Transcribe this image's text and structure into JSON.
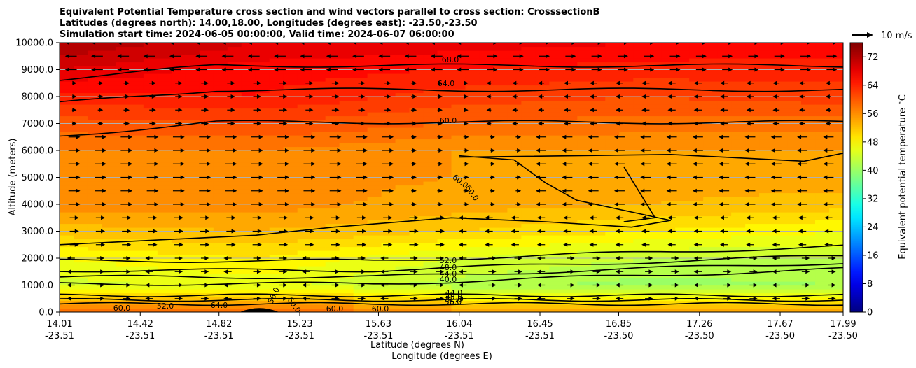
{
  "chart_data": {
    "type": "heatmap",
    "title_lines": [
      "Equivalent Potential Temperature cross section and wind vectors parallel to cross section: CrosssectionB",
      "Latitudes (degrees north): 14.00,18.00, Longitudes (degrees east): -23.50,-23.50",
      "Simulation start time: 2024-06-05 00:00:00, Valid time: 2024-06-07 06:00:00"
    ],
    "xlabel_1": "Latitude (degrees N)",
    "xlabel_2": "Longitude (degrees E)",
    "ylabel": "Altitude (meters)",
    "x_ticks_lat": [
      "14.01",
      "14.42",
      "14.82",
      "15.23",
      "15.63",
      "16.04",
      "16.45",
      "16.85",
      "17.26",
      "17.67",
      "17.99"
    ],
    "x_ticks_lon": [
      "-23.51",
      "-23.51",
      "-23.51",
      "-23.51",
      "-23.51",
      "-23.51",
      "-23.51",
      "-23.50",
      "-23.50",
      "-23.50",
      "-23.50"
    ],
    "y_ticks": [
      "0.0",
      "1000.0",
      "2000.0",
      "3000.0",
      "4000.0",
      "5000.0",
      "6000.0",
      "7000.0",
      "8000.0",
      "9000.0",
      "10000.0"
    ],
    "xlim": [
      14.01,
      17.99
    ],
    "ylim": [
      0,
      10000
    ],
    "colorbar": {
      "label": "Equivalent potential temperature $^\\circ$C",
      "ticks": [
        "0",
        "8",
        "16",
        "24",
        "32",
        "40",
        "48",
        "56",
        "64",
        "72"
      ],
      "range": [
        0,
        76
      ]
    },
    "quiver_key_label": "10 m/s",
    "contour_labels": [
      "68.0",
      "64.0",
      "60.0",
      "60.0",
      "60.0",
      "52.0",
      "48.0",
      "44.0",
      "40.0",
      "44.0",
      "48.0",
      "52.0",
      "56.0",
      "60.0",
      "60.0",
      "60.0",
      "56.0",
      "52.0",
      "64.0",
      "60.0"
    ],
    "contour_levels": [
      40,
      44,
      48,
      52,
      56,
      60,
      64,
      68
    ],
    "field_bands": [
      {
        "lat_frac": 0.0,
        "values_by_altitude": [
          58,
          44,
          47,
          52,
          56,
          57,
          57,
          60,
          64,
          69,
          73
        ]
      },
      {
        "lat_frac": 0.25,
        "values_by_altitude": [
          60,
          46,
          49,
          53,
          56,
          56,
          57,
          61,
          65,
          66,
          69
        ]
      },
      {
        "lat_frac": 0.5,
        "values_by_altitude": [
          56,
          42,
          45,
          51,
          54,
          55,
          55,
          59,
          62,
          65,
          68
        ]
      },
      {
        "lat_frac": 0.75,
        "values_by_altitude": [
          55,
          40,
          43,
          49,
          53,
          54,
          55,
          58,
          61,
          64,
          67
        ]
      },
      {
        "lat_frac": 1.0,
        "values_by_altitude": [
          55,
          41,
          43,
          47,
          52,
          54,
          55,
          58,
          62,
          64,
          66
        ]
      }
    ]
  }
}
